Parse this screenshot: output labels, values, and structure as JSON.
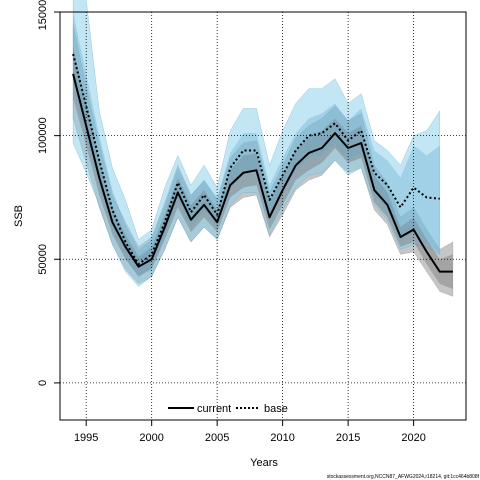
{
  "chart_data": {
    "type": "line",
    "xlabel": "Years",
    "ylabel": "SSB",
    "xlim": [
      1993.0,
      2024.0
    ],
    "ylim": [
      -15000,
      150000
    ],
    "x_ticks": [
      1995,
      2000,
      2005,
      2010,
      2015,
      2020
    ],
    "y_ticks": [
      0,
      50000,
      100000,
      150000
    ],
    "x_tick_labels": [
      "1995",
      "2000",
      "2005",
      "2010",
      "2015",
      "2020"
    ],
    "y_tick_labels": [
      "0",
      "50000",
      "100000",
      "150000"
    ],
    "grid": true,
    "legend_position": "bottom-center",
    "series": [
      {
        "name": "current",
        "color": "#000000",
        "line_style": "solid",
        "band_color": "#808080",
        "x": [
          1994,
          1995,
          1996,
          1997,
          1998,
          1999,
          2000,
          2001,
          2002,
          2003,
          2004,
          2005,
          2006,
          2007,
          2008,
          2009,
          2010,
          2011,
          2012,
          2013,
          2014,
          2015,
          2016,
          2017,
          2018,
          2019,
          2020,
          2021,
          2022,
          2023
        ],
        "values": [
          125000,
          104000,
          83000,
          65000,
          55000,
          47000,
          50000,
          63000,
          77000,
          66000,
          72000,
          65000,
          80000,
          85000,
          86000,
          67000,
          78000,
          88000,
          93000,
          95000,
          101000,
          95000,
          97000,
          78000,
          72000,
          59000,
          62000,
          53000,
          45000,
          45000
        ],
        "lower_80": [
          115000,
          96000,
          76000,
          60000,
          50000,
          43000,
          46000,
          58000,
          71000,
          61000,
          67000,
          61000,
          75000,
          79000,
          80000,
          62000,
          72000,
          82000,
          86000,
          89000,
          95000,
          89000,
          91000,
          73000,
          67000,
          55000,
          57000,
          48000,
          40000,
          38000
        ],
        "upper_80": [
          136000,
          113000,
          90000,
          71000,
          60000,
          51000,
          55000,
          68000,
          83000,
          72000,
          78000,
          70000,
          86000,
          92000,
          93000,
          73000,
          84000,
          94000,
          99000,
          102000,
          107000,
          101000,
          104000,
          84000,
          77000,
          63000,
          67000,
          58000,
          50000,
          52000
        ],
        "lower_95": [
          107000,
          89000,
          71000,
          56000,
          46000,
          40000,
          43000,
          54000,
          67000,
          57000,
          63000,
          58000,
          71000,
          75000,
          76000,
          59000,
          68000,
          78000,
          82000,
          84000,
          90000,
          85000,
          87000,
          70000,
          64000,
          52000,
          53000,
          45000,
          37000,
          35000
        ],
        "upper_95": [
          145000,
          120000,
          97000,
          76000,
          65000,
          55000,
          59000,
          73000,
          88000,
          76000,
          82000,
          74000,
          91000,
          97000,
          98000,
          77000,
          88000,
          99000,
          104000,
          107000,
          112000,
          106000,
          109000,
          88000,
          81000,
          67000,
          71000,
          62000,
          54000,
          57000
        ]
      },
      {
        "name": "base",
        "color": "#000000",
        "line_style": "dotted",
        "band_color": "#87CEEB",
        "x": [
          1994,
          1995,
          1996,
          1997,
          1998,
          1999,
          2000,
          2001,
          2002,
          2003,
          2004,
          2005,
          2006,
          2007,
          2008,
          2009,
          2010,
          2011,
          2012,
          2013,
          2014,
          2015,
          2016,
          2017,
          2018,
          2019,
          2020,
          2021,
          2022
        ],
        "values": [
          133000,
          112000,
          90000,
          70000,
          57000,
          48000,
          52000,
          65000,
          81000,
          69000,
          76000,
          68000,
          87000,
          94000,
          94000,
          74000,
          84000,
          94000,
          100000,
          101000,
          105000,
          98000,
          102000,
          85000,
          80000,
          71000,
          79000,
          75000,
          74500
        ],
        "lower_80": [
          120000,
          100000,
          80000,
          62000,
          51000,
          43000,
          47000,
          59000,
          74000,
          63000,
          70000,
          63000,
          80000,
          86000,
          86000,
          67000,
          77000,
          86000,
          91000,
          92000,
          97000,
          90000,
          93000,
          76000,
          70000,
          58000,
          62000,
          57000,
          52000
        ],
        "upper_80": [
          150000,
          125000,
          100000,
          78000,
          64000,
          54000,
          58000,
          72000,
          87000,
          76000,
          82000,
          75000,
          93000,
          101000,
          101000,
          80000,
          91000,
          101000,
          107000,
          109000,
          113000,
          106000,
          111000,
          94000,
          90000,
          83000,
          96000,
          92000,
          96000
        ],
        "lower_95": [
          97000,
          85000,
          72000,
          56000,
          45000,
          39000,
          43000,
          54000,
          67000,
          57000,
          63000,
          58000,
          72000,
          77000,
          77000,
          60000,
          70000,
          79000,
          84000,
          85000,
          90000,
          84000,
          87000,
          72000,
          66000,
          54000,
          56000,
          55000,
          52000
        ],
        "upper_95": [
          170000,
          155000,
          110000,
          87000,
          74000,
          58000,
          62000,
          79000,
          92000,
          80000,
          88000,
          79000,
          102000,
          111000,
          111000,
          88000,
          102000,
          113000,
          119000,
          119000,
          123000,
          113000,
          117000,
          98000,
          94000,
          88000,
          100000,
          102000,
          110000
        ]
      }
    ],
    "source_text": "stockassessment.org,NCCN87_AFWG2024,r18214, git:1cc464b808f"
  }
}
